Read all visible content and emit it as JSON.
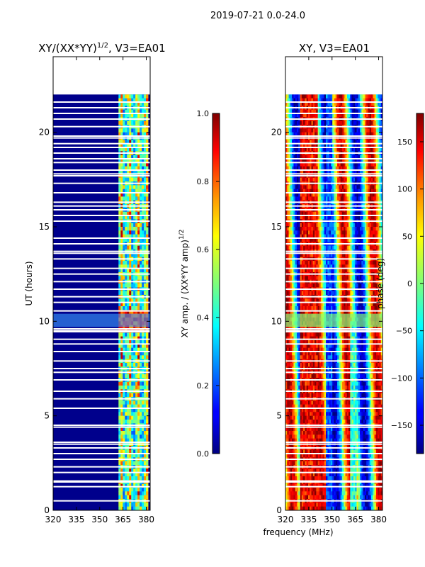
{
  "suptitle": "2019-07-21 0.0-24.0",
  "xlabel": "frequency (MHz)",
  "chart_data": [
    {
      "type": "heatmap",
      "title_main": "XY/(XX*YY)",
      "title_sup": "1/2",
      "title_rest": ", V3=EA01",
      "ylabel": "UT (hours)",
      "xlim": [
        320,
        382.5
      ],
      "ylim": [
        0,
        24
      ],
      "xticks": [
        "320",
        "335",
        "350",
        "365",
        "380"
      ],
      "yticks": [
        "0",
        "5",
        "10",
        "15",
        "20"
      ],
      "xtick_values": [
        320,
        335,
        350,
        365,
        380
      ],
      "ytick_values": [
        0,
        5,
        10,
        15,
        20
      ],
      "data_range_hours": [
        0,
        22
      ],
      "gap_hours": [
        0.5,
        1.25,
        1.5,
        1.55,
        2.0,
        2.3,
        2.7,
        3.0,
        3.3,
        3.5,
        3.6,
        4.4,
        4.5,
        5.4,
        5.9,
        6.3,
        6.9,
        7.3,
        7.5,
        7.9,
        8.4,
        8.8,
        9.05,
        9.45,
        9.5,
        9.6,
        10.55,
        11.0,
        11.3,
        11.7,
        12.1,
        12.5,
        12.8,
        13.3,
        13.6,
        13.7,
        14.1,
        14.4,
        15.3,
        15.6,
        15.9,
        16.1,
        16.3,
        16.8,
        17.3,
        17.7,
        17.8,
        18.0,
        18.4,
        18.6,
        18.9,
        19.2,
        19.4,
        19.7,
        19.8,
        20.3,
        20.7,
        21.0,
        21.3,
        21.6
      ],
      "colorbar": {
        "label_main": "XY amp. / (XX*YY amp)",
        "label_sup": "1/2",
        "range": [
          0.0,
          1.0
        ],
        "ticks": [
          "0.0",
          "0.2",
          "0.4",
          "0.6",
          "0.8",
          "1.0"
        ],
        "tick_values": [
          0.0,
          0.2,
          0.4,
          0.6,
          0.8,
          1.0
        ]
      }
    },
    {
      "type": "heatmap",
      "title_main": "XY, V3=EA01",
      "xlim": [
        320,
        382.5
      ],
      "ylim": [
        0,
        24
      ],
      "xticks": [
        "320",
        "335",
        "350",
        "365",
        "380"
      ],
      "yticks": [
        "0",
        "5",
        "10",
        "15",
        "20"
      ],
      "xtick_values": [
        320,
        335,
        350,
        365,
        380
      ],
      "ytick_values": [
        0,
        5,
        10,
        15,
        20
      ],
      "data_range_hours": [
        0,
        22
      ],
      "colorbar": {
        "label": "phase (deg)",
        "range": [
          -180,
          180
        ],
        "ticks": [
          "−150",
          "−100",
          "−50",
          "0",
          "50",
          "100",
          "150"
        ],
        "tick_values": [
          -150,
          -100,
          -50,
          0,
          50,
          100,
          150
        ]
      }
    }
  ]
}
